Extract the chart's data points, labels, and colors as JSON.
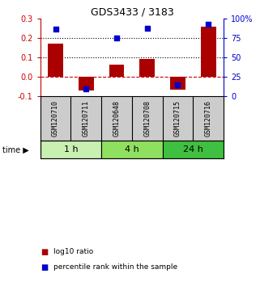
{
  "title": "GDS3433 / 3183",
  "samples": [
    "GSM120710",
    "GSM120711",
    "GSM120648",
    "GSM120708",
    "GSM120715",
    "GSM120716"
  ],
  "log10_ratio": [
    0.17,
    -0.07,
    0.065,
    0.093,
    -0.065,
    0.26
  ],
  "percentile_rank": [
    87,
    10,
    75,
    88,
    15,
    93
  ],
  "time_groups": [
    {
      "label": "1 h",
      "indices": [
        0,
        1
      ],
      "color": "#c8f0b0"
    },
    {
      "label": "4 h",
      "indices": [
        2,
        3
      ],
      "color": "#90e060"
    },
    {
      "label": "24 h",
      "indices": [
        4,
        5
      ],
      "color": "#40c040"
    }
  ],
  "bar_color": "#aa0000",
  "dot_color": "#0000cc",
  "ylim_left": [
    -0.1,
    0.3
  ],
  "ylim_right": [
    0,
    100
  ],
  "yticks_left": [
    -0.1,
    0.0,
    0.1,
    0.2,
    0.3
  ],
  "yticks_right": [
    0,
    25,
    50,
    75,
    100
  ],
  "ytick_labels_right": [
    "0",
    "25",
    "50",
    "75",
    "100%"
  ],
  "hlines": [
    0.1,
    0.2
  ],
  "dashed_zero_color": "#cc0000",
  "legend_items": [
    "log10 ratio",
    "percentile rank within the sample"
  ],
  "bg_color": "#ffffff",
  "label_bg": "#cccccc",
  "bar_width": 0.5,
  "title_fontsize": 9
}
